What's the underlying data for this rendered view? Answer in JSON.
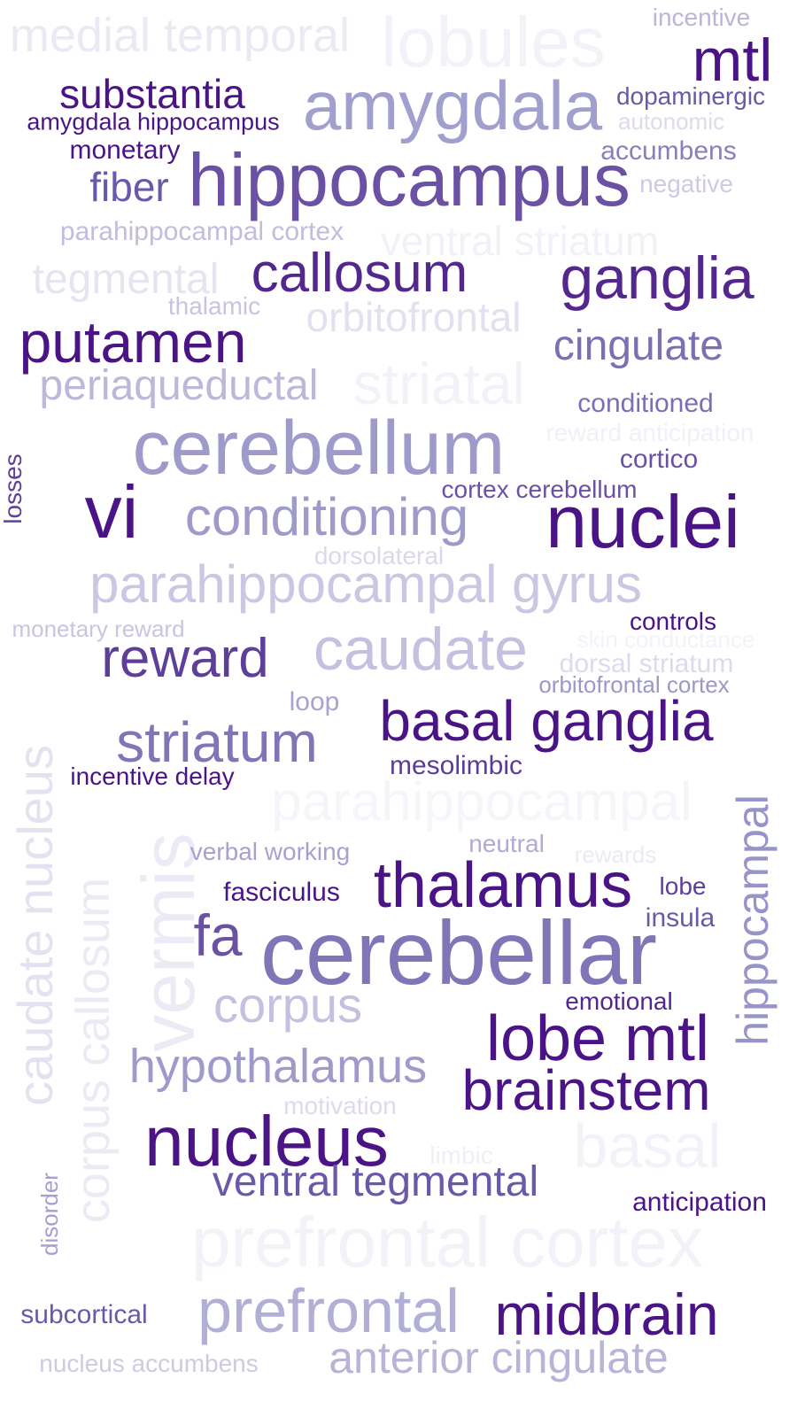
{
  "words": [
    {
      "text": "medial temporal",
      "color": "#ebe9f4"
    },
    {
      "text": "lobules",
      "color": "#f3f2f8"
    },
    {
      "text": "incentive",
      "color": "#b9b6d9"
    },
    {
      "text": "mtl",
      "color": "#4a1486"
    },
    {
      "text": "substantia",
      "color": "#4a1486"
    },
    {
      "text": "amygdala",
      "color": "#a19fcd"
    },
    {
      "text": "dopaminergic",
      "color": "#6a58aa"
    },
    {
      "text": "amygdala hippocampus",
      "color": "#4a1486"
    },
    {
      "text": "autonomic",
      "color": "#dcdaed"
    },
    {
      "text": "monetary",
      "color": "#4a1486"
    },
    {
      "text": "accumbens",
      "color": "#8681bd"
    },
    {
      "text": "hippocampus",
      "color": "#6a51a3"
    },
    {
      "text": "fiber",
      "color": "#6a58aa"
    },
    {
      "text": "negative",
      "color": "#cdcbe4"
    },
    {
      "text": "parahippocampal cortex",
      "color": "#c0bddd"
    },
    {
      "text": "ventral striatum",
      "color": "#f2f1f7"
    },
    {
      "text": "tegmental",
      "color": "#e6e4f1"
    },
    {
      "text": "callosum",
      "color": "#54278f"
    },
    {
      "text": "ganglia",
      "color": "#54278f"
    },
    {
      "text": "thalamic",
      "color": "#c7c4e1"
    },
    {
      "text": "orbitofrontal",
      "color": "#e3e1ef"
    },
    {
      "text": "putamen",
      "color": "#4a1486"
    },
    {
      "text": "cingulate",
      "color": "#7a70b4"
    },
    {
      "text": "periaqueductal",
      "color": "#bbb8da"
    },
    {
      "text": "striatal",
      "color": "#f3f2f8"
    },
    {
      "text": "conditioned",
      "color": "#7a6fb3"
    },
    {
      "text": "reward anticipation",
      "color": "#f1f0f7"
    },
    {
      "text": "cerebellum",
      "color": "#9e9bcb"
    },
    {
      "text": "cortico",
      "color": "#6a51a3"
    },
    {
      "text": "losses",
      "color": "#5d4299"
    },
    {
      "text": "cortex cerebellum",
      "color": "#6a51a3"
    },
    {
      "text": "vi",
      "color": "#4a1486"
    },
    {
      "text": "conditioning",
      "color": "#9e9bcb"
    },
    {
      "text": "nuclei",
      "color": "#4a1486"
    },
    {
      "text": "dorsolateral",
      "color": "#dad8ec"
    },
    {
      "text": "parahippocampal gyrus",
      "color": "#c9c7e2"
    },
    {
      "text": "monetary reward",
      "color": "#c7c5e1"
    },
    {
      "text": "controls",
      "color": "#4a1486"
    },
    {
      "text": "skin conductance",
      "color": "#f3f2f8"
    },
    {
      "text": "reward",
      "color": "#5d3e98"
    },
    {
      "text": "caudate",
      "color": "#c3c1df"
    },
    {
      "text": "dorsal striatum",
      "color": "#dcdaed"
    },
    {
      "text": "orbitofrontal cortex",
      "color": "#9b98c9"
    },
    {
      "text": "loop",
      "color": "#a6a3d0"
    },
    {
      "text": "basal ganglia",
      "color": "#4a1486"
    },
    {
      "text": "striatum",
      "color": "#7e76b7"
    },
    {
      "text": "mesolimbic",
      "color": "#5a3d98"
    },
    {
      "text": "incentive delay",
      "color": "#4a1486"
    },
    {
      "text": "caudate nucleus",
      "color": "#e4e2f0"
    },
    {
      "text": "corpus callosum",
      "color": "#eceaf4"
    },
    {
      "text": "vermis",
      "color": "#eceaf4"
    },
    {
      "text": "parahippocampal",
      "color": "#f6f5fa"
    },
    {
      "text": "hippocampal",
      "color": "#9794c7"
    },
    {
      "text": "verbal working",
      "color": "#a5a2cf"
    },
    {
      "text": "neutral",
      "color": "#aeabd4"
    },
    {
      "text": "rewards",
      "color": "#ebe9f4"
    },
    {
      "text": "thalamus",
      "color": "#4a1486"
    },
    {
      "text": "fasciculus",
      "color": "#4a1486"
    },
    {
      "text": "lobe",
      "color": "#5d3e98"
    },
    {
      "text": "insula",
      "color": "#6a58aa"
    },
    {
      "text": "fa",
      "color": "#6a51a3"
    },
    {
      "text": "cerebellar",
      "color": "#7e76b7"
    },
    {
      "text": "corpus",
      "color": "#c3c1df"
    },
    {
      "text": "emotional",
      "color": "#54278f"
    },
    {
      "text": "lobe mtl",
      "color": "#4a1486"
    },
    {
      "text": "hypothalamus",
      "color": "#9e9bcb"
    },
    {
      "text": "brainstem",
      "color": "#4a1486"
    },
    {
      "text": "motivation",
      "color": "#dcdaed"
    },
    {
      "text": "nucleus",
      "color": "#4a1486"
    },
    {
      "text": "limbic",
      "color": "#f0eff6"
    },
    {
      "text": "basal",
      "color": "#f3f2f8"
    },
    {
      "text": "ventral tegmental",
      "color": "#6a58aa"
    },
    {
      "text": "anticipation",
      "color": "#4a1486"
    },
    {
      "text": "disorder",
      "color": "#a39fce"
    },
    {
      "text": "prefrontal cortex",
      "color": "#f3f2f8"
    },
    {
      "text": "subcortical",
      "color": "#6a58aa"
    },
    {
      "text": "prefrontal",
      "color": "#b2afd6"
    },
    {
      "text": "midbrain",
      "color": "#4a1486"
    },
    {
      "text": "nucleus accumbens",
      "color": "#cdcbe4"
    },
    {
      "text": "anterior cingulate",
      "color": "#b7b4d8"
    }
  ]
}
